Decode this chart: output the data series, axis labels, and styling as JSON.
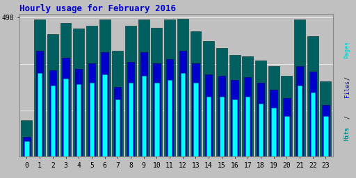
{
  "title": "Hourly usage for February 2016",
  "hours": [
    0,
    1,
    2,
    3,
    4,
    5,
    6,
    7,
    8,
    9,
    10,
    11,
    12,
    13,
    14,
    15,
    16,
    17,
    18,
    19,
    20,
    21,
    22,
    23
  ],
  "pages": [
    55,
    300,
    255,
    280,
    260,
    265,
    295,
    205,
    265,
    290,
    265,
    275,
    300,
    265,
    215,
    215,
    205,
    215,
    190,
    175,
    145,
    255,
    230,
    145
  ],
  "files": [
    70,
    380,
    310,
    355,
    315,
    335,
    375,
    250,
    340,
    375,
    335,
    350,
    380,
    335,
    295,
    290,
    275,
    285,
    265,
    240,
    210,
    325,
    305,
    185
  ],
  "hits": [
    130,
    492,
    440,
    480,
    460,
    470,
    492,
    380,
    470,
    492,
    462,
    492,
    494,
    450,
    415,
    390,
    365,
    360,
    345,
    325,
    290,
    492,
    432,
    270
  ],
  "color_pages": "#00FFFF",
  "color_files": "#0000CC",
  "color_hits": "#006060",
  "pages_edge": "#008888",
  "files_edge": "#000066",
  "hits_edge": "#003030",
  "ylim": [
    0,
    510
  ],
  "ytick_val": 498,
  "background_color": "#C0C0C0",
  "plot_bg": "#C0C0C0",
  "title_color": "#0000CC",
  "ylabel_color_pages": "#00CCCC",
  "ylabel_color_files": "#0000EE",
  "ylabel_color_hits": "#008080",
  "title_fontsize": 9,
  "tick_fontsize": 7
}
